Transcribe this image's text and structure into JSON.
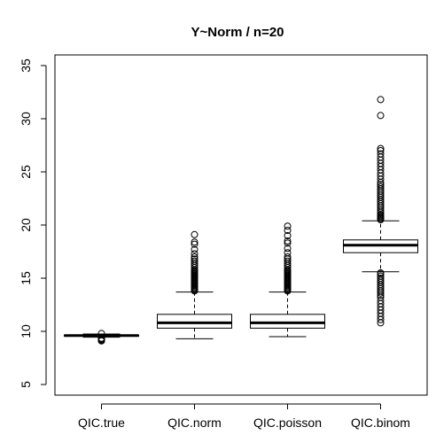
{
  "chart_data": {
    "type": "boxplot",
    "title": "Y~Norm / n=20",
    "xlabel": "",
    "ylabel": "",
    "ylim": [
      4,
      36
    ],
    "yticks": [
      5,
      10,
      15,
      20,
      25,
      30,
      35
    ],
    "categories": [
      "QIC.true",
      "QIC.norm",
      "QIC.poisson",
      "QIC.binom"
    ],
    "boxes": [
      {
        "name": "QIC.true",
        "whisker_low": 9.45,
        "q1": 9.55,
        "median": 9.6,
        "q3": 9.65,
        "whisker_high": 9.75,
        "outliers": [
          9.1,
          9.15,
          9.2,
          9.25,
          9.3,
          9.35,
          9.8
        ]
      },
      {
        "name": "QIC.norm",
        "whisker_low": 9.3,
        "q1": 10.3,
        "median": 10.8,
        "q3": 11.6,
        "whisker_high": 13.7,
        "outliers": [
          13.8,
          13.9,
          14.0,
          14.1,
          14.2,
          14.3,
          14.4,
          14.5,
          14.6,
          14.7,
          14.8,
          14.9,
          15.0,
          15.1,
          15.2,
          15.3,
          15.4,
          15.5,
          15.6,
          15.7,
          15.8,
          16.0,
          16.2,
          16.4,
          16.6,
          16.8,
          17.0,
          17.3,
          17.7,
          18.2,
          18.4,
          19.1
        ]
      },
      {
        "name": "QIC.poisson",
        "whisker_low": 9.5,
        "q1": 10.3,
        "median": 10.8,
        "q3": 11.6,
        "whisker_high": 13.7,
        "outliers": [
          13.8,
          13.9,
          14.0,
          14.1,
          14.2,
          14.3,
          14.4,
          14.5,
          14.6,
          14.7,
          14.8,
          14.9,
          15.0,
          15.1,
          15.2,
          15.3,
          15.4,
          15.5,
          15.6,
          15.7,
          15.8,
          16.0,
          16.2,
          16.4,
          16.6,
          16.8,
          17.0,
          17.4,
          17.8,
          18.3,
          18.5,
          19.0,
          19.5,
          19.9
        ]
      },
      {
        "name": "QIC.binom",
        "whisker_low": 15.6,
        "q1": 17.4,
        "median": 18.1,
        "q3": 18.6,
        "whisker_high": 20.4,
        "outliers": [
          10.8,
          11.1,
          11.4,
          11.7,
          12.0,
          12.3,
          12.6,
          12.9,
          13.2,
          13.4,
          13.6,
          13.8,
          14.0,
          14.2,
          14.4,
          14.6,
          14.8,
          15.0,
          15.2,
          15.4,
          15.5,
          20.5,
          20.6,
          20.7,
          20.8,
          20.9,
          21.0,
          21.2,
          21.4,
          21.6,
          21.8,
          22.0,
          22.2,
          22.4,
          22.6,
          22.8,
          23.0,
          23.2,
          23.4,
          23.6,
          23.8,
          24.0,
          24.3,
          24.6,
          24.9,
          25.2,
          25.5,
          25.8,
          26.1,
          26.4,
          26.7,
          27.0,
          27.2,
          30.3,
          31.8
        ]
      }
    ]
  }
}
